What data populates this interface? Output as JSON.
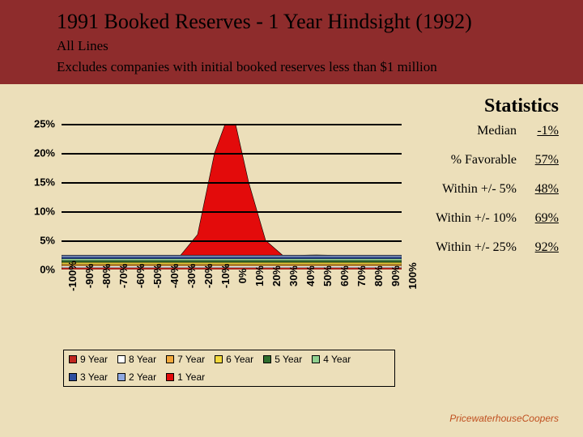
{
  "header": {
    "title": "1991 Booked Reserves - 1 Year Hindsight (1992)",
    "subtitle1": "All Lines",
    "subtitle2": "Excludes companies with initial booked reserves less than $1 million"
  },
  "stats_header": "Statistics",
  "stats": [
    {
      "label": "Median",
      "value": "-1%"
    },
    {
      "label": "% Favorable",
      "value": "57%"
    },
    {
      "label": "Within +/- 5%",
      "value": "48%"
    },
    {
      "label": "Within +/- 10%",
      "value": "69%"
    },
    {
      "label": "Within +/- 25%",
      "value": "92%"
    }
  ],
  "chart": {
    "type": "area",
    "background_color": "#ecdfba",
    "grid_color": "#000000",
    "ylim": [
      0,
      25
    ],
    "ytick_step": 5,
    "y_labels": [
      "0%",
      "5%",
      "10%",
      "15%",
      "20%",
      "25%"
    ],
    "x_labels": [
      "-100%",
      "-90%",
      "-80%",
      "-70%",
      "-60%",
      "-50%",
      "-40%",
      "-30%",
      "-20%",
      "-10%",
      "0%",
      "10%",
      "20%",
      "30%",
      "40%",
      "50%",
      "60%",
      "70%",
      "80%",
      "90%",
      "100%"
    ],
    "baseline_values": [
      0.5,
      0.5,
      0.5,
      0.5,
      0.5,
      0.5,
      0.5,
      0.5,
      0.5,
      0.5,
      0.5,
      0.5,
      0.5,
      0.5,
      0.5,
      0.5,
      0.5,
      0.5,
      0.5,
      0.5,
      0.5
    ],
    "primary_series": {
      "name": "1 Year",
      "color": "#e30b0b",
      "values": [
        0.5,
        0.5,
        0.5,
        0.5,
        0.5,
        0.5,
        0.5,
        1,
        6,
        20,
        28,
        15,
        5,
        2,
        1.3,
        2.5,
        1.2,
        0.7,
        0.5,
        0.5,
        0.5
      ]
    },
    "baseline_bands": [
      {
        "name": "9 Year",
        "color": "#c1261f"
      },
      {
        "name": "8 Year",
        "color": "#ffffff"
      },
      {
        "name": "7 Year",
        "color": "#f2a93c"
      },
      {
        "name": "6 Year",
        "color": "#f2d83c"
      },
      {
        "name": "5 Year",
        "color": "#2e6e2e"
      },
      {
        "name": "4 Year",
        "color": "#8fd08f"
      },
      {
        "name": "3 Year",
        "color": "#2e4ea0"
      },
      {
        "name": "2 Year",
        "color": "#8fa8e0"
      }
    ],
    "axis_fontsize": 13,
    "axis_font_bold": true
  },
  "legend": {
    "items": [
      {
        "label": "9 Year",
        "color": "#c1261f"
      },
      {
        "label": "8 Year",
        "color": "#ffffff"
      },
      {
        "label": "7 Year",
        "color": "#f2a93c"
      },
      {
        "label": "6 Year",
        "color": "#f2d83c"
      },
      {
        "label": "5 Year",
        "color": "#2e6e2e"
      },
      {
        "label": "4 Year",
        "color": "#8fd08f"
      },
      {
        "label": "3 Year",
        "color": "#2e4ea0"
      },
      {
        "label": "2 Year",
        "color": "#8fa8e0"
      },
      {
        "label": "1 Year",
        "color": "#e30b0b"
      }
    ]
  },
  "footer": "PricewaterhouseCoopers"
}
